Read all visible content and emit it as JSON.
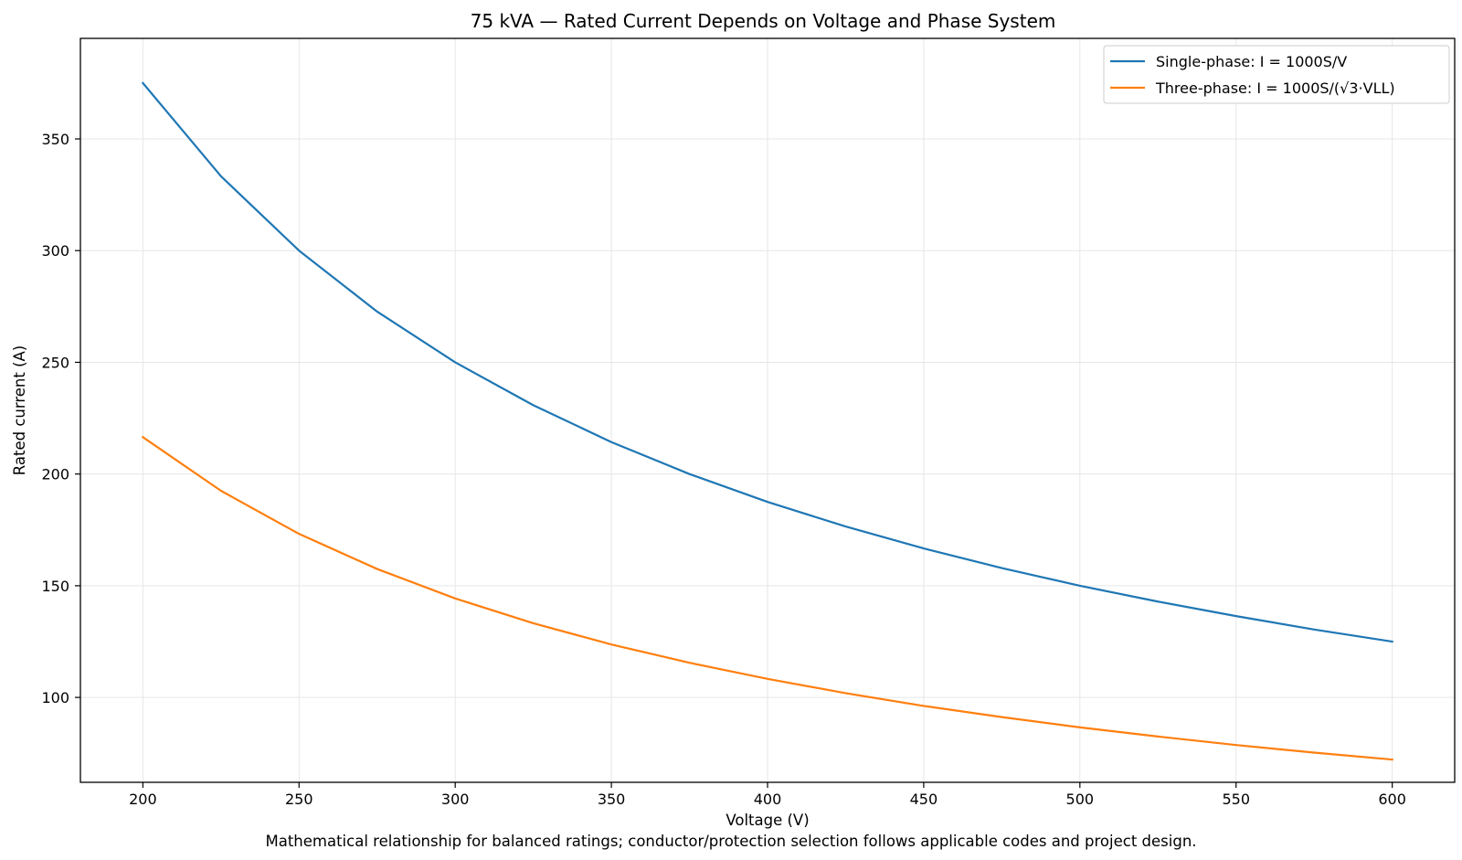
{
  "chart_data": {
    "type": "line",
    "title": "75 kVA — Rated Current Depends on Voltage and Phase System",
    "xlabel": "Voltage (V)",
    "ylabel": "Rated current (A)",
    "caption": "Mathematical relationship for balanced ratings; conductor/protection selection follows applicable codes and project design.",
    "xlim": [
      180,
      620
    ],
    "ylim": [
      62,
      395
    ],
    "xticks": [
      200,
      250,
      300,
      350,
      400,
      450,
      500,
      550,
      600
    ],
    "yticks": [
      100,
      150,
      200,
      250,
      300,
      350
    ],
    "grid": true,
    "legend_position": "top-right",
    "series": [
      {
        "name": "Single-phase: I = 1000S/V",
        "color": "#1f77b4",
        "x": [
          200,
          225,
          250,
          275,
          300,
          325,
          350,
          375,
          400,
          425,
          450,
          475,
          500,
          525,
          550,
          575,
          600
        ],
        "y": [
          375.0,
          333.3,
          300.0,
          272.7,
          250.0,
          230.8,
          214.3,
          200.0,
          187.5,
          176.5,
          166.7,
          157.9,
          150.0,
          142.9,
          136.4,
          130.4,
          125.0
        ]
      },
      {
        "name": "Three-phase: I = 1000S/(√3·VLL)",
        "color": "#ff7f0e",
        "x": [
          200,
          225,
          250,
          275,
          300,
          325,
          350,
          375,
          400,
          425,
          450,
          475,
          500,
          525,
          550,
          575,
          600
        ],
        "y": [
          216.5,
          192.5,
          173.2,
          157.5,
          144.3,
          133.2,
          123.7,
          115.5,
          108.3,
          101.9,
          96.2,
          91.2,
          86.6,
          82.5,
          78.7,
          75.3,
          72.2
        ]
      }
    ]
  }
}
